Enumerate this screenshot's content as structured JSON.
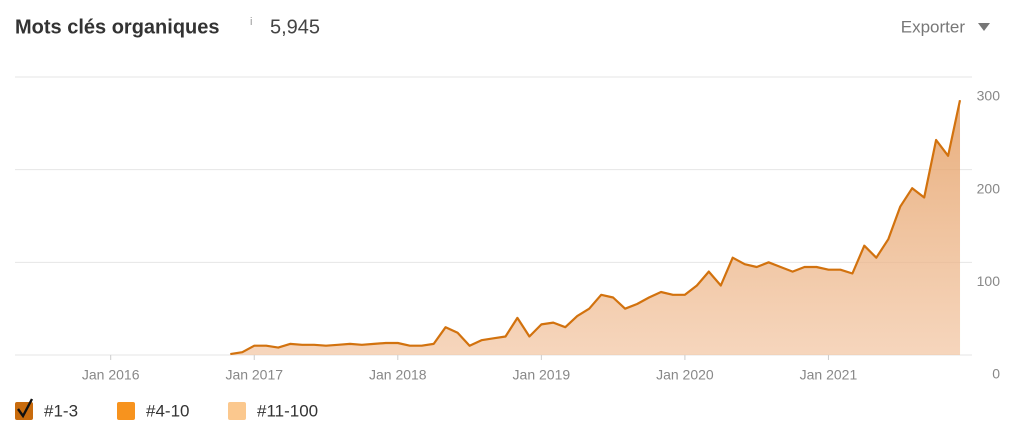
{
  "chart_data": {
    "type": "area",
    "title": "Mots clés organiques",
    "info_icon": "i",
    "total": "5,945",
    "export_label": "Exporter",
    "x": [
      "2016-11",
      "2016-12",
      "2017-01",
      "2017-02",
      "2017-03",
      "2017-04",
      "2017-05",
      "2017-06",
      "2017-07",
      "2017-08",
      "2017-09",
      "2017-10",
      "2017-11",
      "2017-12",
      "2018-01",
      "2018-02",
      "2018-03",
      "2018-04",
      "2018-05",
      "2018-06",
      "2018-07",
      "2018-08",
      "2018-09",
      "2018-10",
      "2018-11",
      "2018-12",
      "2019-01",
      "2019-02",
      "2019-03",
      "2019-04",
      "2019-05",
      "2019-06",
      "2019-07",
      "2019-08",
      "2019-09",
      "2019-10",
      "2019-11",
      "2019-12",
      "2020-01",
      "2020-02",
      "2020-03",
      "2020-04",
      "2020-05",
      "2020-06",
      "2020-07",
      "2020-08",
      "2020-09",
      "2020-10",
      "2020-11",
      "2020-12",
      "2021-01",
      "2021-02",
      "2021-03",
      "2021-04",
      "2021-05",
      "2021-06",
      "2021-07",
      "2021-08",
      "2021-09",
      "2021-10",
      "2021-11",
      "2021-12"
    ],
    "values": [
      1,
      3,
      10,
      10,
      8,
      12,
      11,
      11,
      10,
      11,
      12,
      11,
      12,
      13,
      13,
      10,
      10,
      12,
      30,
      24,
      10,
      16,
      18,
      20,
      40,
      20,
      33,
      35,
      30,
      42,
      50,
      65,
      62,
      50,
      55,
      62,
      68,
      65,
      65,
      75,
      90,
      75,
      105,
      98,
      95,
      100,
      95,
      90,
      95,
      95,
      92,
      92,
      88,
      118,
      105,
      125,
      160,
      180,
      170,
      232,
      215,
      275
    ],
    "color": "#d2720e",
    "xlim": [
      "2015-05",
      "2022-01"
    ],
    "xticks": [
      {
        "value": "2016-01",
        "label": "Jan 2016"
      },
      {
        "value": "2017-01",
        "label": "Jan 2017"
      },
      {
        "value": "2018-01",
        "label": "Jan 2018"
      },
      {
        "value": "2019-01",
        "label": "Jan 2019"
      },
      {
        "value": "2020-01",
        "label": "Jan 2020"
      },
      {
        "value": "2021-01",
        "label": "Jan 2021"
      }
    ],
    "ylim": [
      0,
      300
    ],
    "yticks": [
      0,
      100,
      200,
      300
    ],
    "grid": true,
    "legend": [
      {
        "name": "#1-3",
        "color": "#c86b0d",
        "checked": true
      },
      {
        "name": "#4-10",
        "color": "#f7931e",
        "checked": false
      },
      {
        "name": "#11-100",
        "color": "#fbc88e",
        "checked": false
      }
    ]
  }
}
